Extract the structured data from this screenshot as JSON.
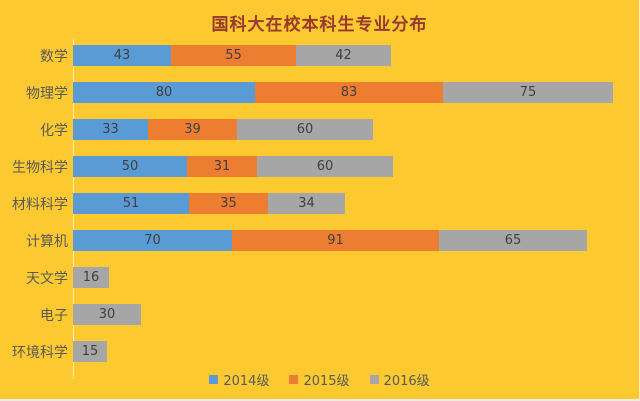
{
  "title": "国科大在校本科生专业分布",
  "colors": {
    "background": "#FCCA30",
    "title_text": "#97392F",
    "category_text": "#595959",
    "value_text": "#404040",
    "series_blue": "#5B9BD5",
    "series_orange": "#ED7D31",
    "series_gray": "#A6A6A6"
  },
  "chart_data": {
    "type": "bar",
    "orientation": "horizontal",
    "stacked": true,
    "title": "国科大在校本科生专业分布",
    "categories": [
      "数学",
      "物理学",
      "化学",
      "生物科学",
      "材料科学",
      "计算机",
      "天文学",
      "电子",
      "环境科学"
    ],
    "series": [
      {
        "name": "2014级",
        "color": "#5B9BD5",
        "values": [
          43,
          80,
          33,
          50,
          51,
          70,
          0,
          0,
          0
        ]
      },
      {
        "name": "2015级",
        "color": "#ED7D31",
        "values": [
          55,
          83,
          39,
          31,
          35,
          91,
          0,
          0,
          0
        ]
      },
      {
        "name": "2016级",
        "color": "#A6A6A6",
        "values": [
          42,
          75,
          60,
          60,
          34,
          65,
          16,
          30,
          15
        ]
      }
    ],
    "value_labels": true,
    "legend_position": "bottom",
    "grid": false,
    "x_axis_shown": false,
    "pixels_per_unit": 2.27
  }
}
